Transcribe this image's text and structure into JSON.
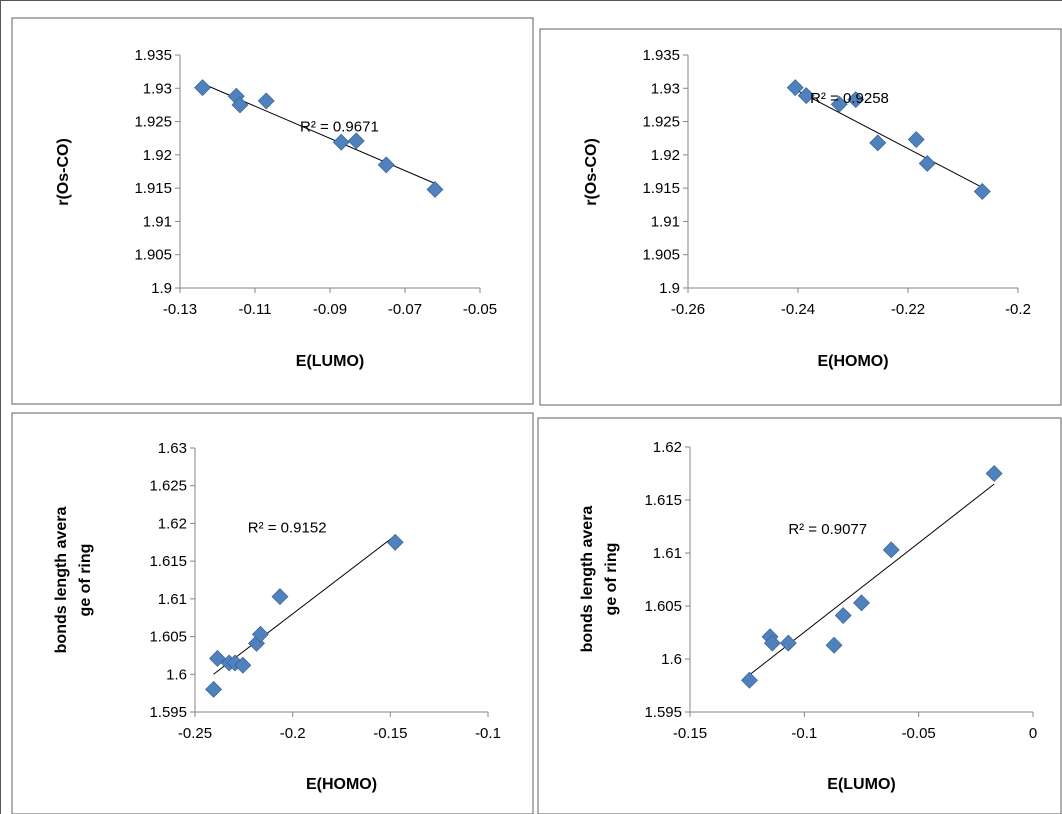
{
  "colors": {
    "marker": "#4F81BD",
    "trendline": "#000000",
    "axis": "#868686",
    "panel_border": "#7a7a7a"
  },
  "chart_data": [
    {
      "type": "scatter",
      "panel": "top-left",
      "xlabel": "E(LUMO)",
      "ylabel": [
        "r(Os-CO)"
      ],
      "xlim": [
        -0.13,
        -0.05
      ],
      "ylim": [
        1.9,
        1.935
      ],
      "xticks": [
        "-0.13",
        "-0.11",
        "-0.09",
        "-0.07",
        "-0.05"
      ],
      "xtick_values": [
        -0.13,
        -0.11,
        -0.09,
        -0.07,
        -0.05
      ],
      "yticks": [
        "1.9",
        "1.905",
        "1.91",
        "1.915",
        "1.92",
        "1.925",
        "1.93",
        "1.935"
      ],
      "ytick_values": [
        1.9,
        1.905,
        1.91,
        1.915,
        1.92,
        1.925,
        1.93,
        1.935
      ],
      "grid": false,
      "r2_label": "R² = 0.9671",
      "r2_anchor": [
        -0.098,
        1.9235
      ],
      "trendline": [
        [
          -0.124,
          1.9307
        ],
        [
          -0.062,
          1.9157
        ]
      ],
      "points": [
        [
          -0.124,
          1.9301
        ],
        [
          -0.115,
          1.9288
        ],
        [
          -0.114,
          1.9275
        ],
        [
          -0.107,
          1.9281
        ],
        [
          -0.087,
          1.9219
        ],
        [
          -0.083,
          1.9221
        ],
        [
          -0.075,
          1.9185
        ],
        [
          -0.062,
          1.9148
        ]
      ]
    },
    {
      "type": "scatter",
      "panel": "top-right",
      "xlabel": "E(HOMO)",
      "ylabel": [
        "r(Os-CO)"
      ],
      "xlim": [
        -0.26,
        -0.2
      ],
      "ylim": [
        1.9,
        1.935
      ],
      "xticks": [
        "-0.26",
        "-0.24",
        "-0.22",
        "-0.2"
      ],
      "xtick_values": [
        -0.26,
        -0.24,
        -0.22,
        -0.2
      ],
      "yticks": [
        "1.9",
        "1.905",
        "1.91",
        "1.915",
        "1.92",
        "1.925",
        "1.93",
        "1.935"
      ],
      "ytick_values": [
        1.9,
        1.905,
        1.91,
        1.915,
        1.92,
        1.925,
        1.93,
        1.935
      ],
      "grid": false,
      "r2_label": "R² = 0.9258",
      "r2_anchor": [
        -0.2378,
        1.9278
      ],
      "trendline": [
        [
          -0.2405,
          1.9298
        ],
        [
          -0.2065,
          1.9151
        ]
      ],
      "points": [
        [
          -0.2405,
          1.9301
        ],
        [
          -0.2385,
          1.9289
        ],
        [
          -0.2325,
          1.9276
        ],
        [
          -0.2295,
          1.9283
        ],
        [
          -0.2255,
          1.9218
        ],
        [
          -0.2185,
          1.9223
        ],
        [
          -0.2165,
          1.9187
        ],
        [
          -0.2065,
          1.9145
        ]
      ]
    },
    {
      "type": "scatter",
      "panel": "bottom-left",
      "xlabel": "E(HOMO)",
      "ylabel": [
        "bonds length  avera",
        "ge of ring"
      ],
      "xlim": [
        -0.25,
        -0.1
      ],
      "ylim": [
        1.595,
        1.63
      ],
      "xticks": [
        "-0.25",
        "-0.2",
        "-0.15",
        "-0.1"
      ],
      "xtick_values": [
        -0.25,
        -0.2,
        -0.15,
        -0.1
      ],
      "yticks": [
        "1.595",
        "1.6",
        "1.605",
        "1.61",
        "1.615",
        "1.62",
        "1.625",
        "1.63"
      ],
      "ytick_values": [
        1.595,
        1.6,
        1.605,
        1.61,
        1.615,
        1.62,
        1.625,
        1.63
      ],
      "grid": false,
      "r2_label": "R² = 0.9152",
      "r2_anchor": [
        -0.223,
        1.6188
      ],
      "trendline": [
        [
          -0.2405,
          1.6
        ],
        [
          -0.1475,
          1.6184
        ]
      ],
      "points": [
        [
          -0.2405,
          1.598
        ],
        [
          -0.2385,
          1.6021
        ],
        [
          -0.2325,
          1.6015
        ],
        [
          -0.2295,
          1.6015
        ],
        [
          -0.2255,
          1.6012
        ],
        [
          -0.2185,
          1.6041
        ],
        [
          -0.2165,
          1.6053
        ],
        [
          -0.2065,
          1.6103
        ],
        [
          -0.1475,
          1.6175
        ]
      ]
    },
    {
      "type": "scatter",
      "panel": "bottom-right",
      "xlabel": "E(LUMO)",
      "ylabel": [
        "bonds length  avera",
        "ge of ring"
      ],
      "xlim": [
        -0.15,
        0
      ],
      "ylim": [
        1.595,
        1.62
      ],
      "xticks": [
        "-0.15",
        "-0.1",
        "-0.05",
        "0"
      ],
      "xtick_values": [
        -0.15,
        -0.1,
        -0.05,
        0
      ],
      "yticks": [
        "1.595",
        "1.6",
        "1.605",
        "1.61",
        "1.615",
        "1.62"
      ],
      "ytick_values": [
        1.595,
        1.6,
        1.605,
        1.61,
        1.615,
        1.62
      ],
      "grid": false,
      "r2_label": "R² = 0.9077",
      "r2_anchor": [
        -0.107,
        1.6118
      ],
      "trendline": [
        [
          -0.124,
          1.5985
        ],
        [
          -0.017,
          1.6165
        ]
      ],
      "points": [
        [
          -0.124,
          1.598
        ],
        [
          -0.115,
          1.6021
        ],
        [
          -0.114,
          1.6015
        ],
        [
          -0.107,
          1.6015
        ],
        [
          -0.087,
          1.6013
        ],
        [
          -0.083,
          1.6041
        ],
        [
          -0.075,
          1.6053
        ],
        [
          -0.062,
          1.6103
        ],
        [
          -0.017,
          1.6175
        ]
      ]
    }
  ]
}
